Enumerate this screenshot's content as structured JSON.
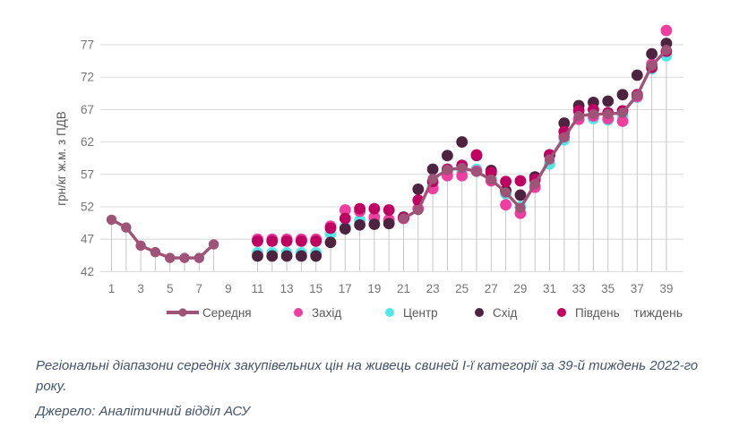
{
  "chart_data": {
    "type": "line",
    "title": "",
    "xlabel": "тиждень",
    "ylabel": "грн/кг ж.м. з ПДВ",
    "xticks": [
      1,
      3,
      5,
      7,
      9,
      11,
      13,
      15,
      17,
      19,
      21,
      23,
      25,
      27,
      29,
      31,
      33,
      35,
      37,
      39
    ],
    "yticks": [
      42,
      47,
      52,
      57,
      62,
      67,
      72,
      77
    ],
    "ylim": [
      42,
      80.5
    ],
    "xlim": [
      1,
      39
    ],
    "grid": true,
    "legend_position": "bottom",
    "weeks": [
      1,
      2,
      3,
      4,
      5,
      6,
      7,
      8,
      9,
      10,
      11,
      12,
      13,
      14,
      15,
      16,
      17,
      18,
      19,
      20,
      21,
      22,
      23,
      24,
      25,
      26,
      27,
      28,
      29,
      30,
      31,
      32,
      33,
      34,
      35,
      36,
      37,
      38,
      39
    ],
    "series": [
      {
        "key": "serednia",
        "name": "Середня",
        "type": "line",
        "color": "#9E5377",
        "values": [
          50.0,
          48.8,
          46.0,
          45.0,
          44.1,
          44.1,
          44.1,
          46.2,
          null,
          null,
          null,
          null,
          null,
          null,
          null,
          null,
          null,
          null,
          null,
          null,
          50.2,
          51.5,
          56.3,
          57.7,
          58.0,
          57.4,
          56.2,
          54.2,
          51.8,
          55.5,
          59.3,
          62.7,
          66.0,
          66.3,
          66.3,
          66.5,
          69.2,
          73.8,
          76.2
        ]
      },
      {
        "key": "zakhid",
        "name": "Захід",
        "type": "scatter",
        "color": "#F03DA0",
        "values": [
          null,
          null,
          null,
          null,
          null,
          null,
          null,
          null,
          null,
          null,
          47.0,
          47.0,
          47.0,
          47.0,
          47.0,
          49.0,
          51.5,
          51.3,
          50.4,
          50.0,
          50.2,
          51.7,
          54.8,
          56.8,
          56.8,
          57.5,
          56.0,
          52.3,
          51.0,
          55.0,
          60.0,
          62.8,
          65.5,
          66.0,
          65.6,
          65.2,
          69.0,
          74.0,
          79.2
        ]
      },
      {
        "key": "tsentr",
        "name": "Центр",
        "type": "scatter",
        "color": "#53E6E8",
        "values": [
          null,
          null,
          null,
          null,
          null,
          null,
          null,
          null,
          null,
          null,
          44.9,
          44.9,
          44.9,
          44.9,
          44.9,
          47.8,
          48.9,
          49.9,
          49.9,
          49.8,
          50.2,
          51.7,
          55.3,
          57.4,
          57.5,
          57.8,
          56.4,
          54.0,
          52.0,
          55.3,
          58.6,
          62.3,
          65.5,
          65.6,
          65.4,
          66.1,
          68.9,
          73.3,
          75.3
        ]
      },
      {
        "key": "skhid",
        "name": "Схід",
        "type": "scatter",
        "color": "#4E2340",
        "values": [
          null,
          null,
          null,
          null,
          null,
          null,
          null,
          null,
          null,
          null,
          44.4,
          44.4,
          44.4,
          44.4,
          44.4,
          46.5,
          48.6,
          49.2,
          49.3,
          49.4,
          50.4,
          54.7,
          57.8,
          59.9,
          62.0,
          59.9,
          57.6,
          54.5,
          53.8,
          56.6,
          60.0,
          64.9,
          67.6,
          68.1,
          68.3,
          69.3,
          72.3,
          75.6,
          77.2
        ]
      },
      {
        "key": "pivden",
        "name": "Південь",
        "type": "scatter",
        "color": "#BF0162",
        "values": [
          null,
          null,
          null,
          null,
          null,
          null,
          null,
          null,
          null,
          null,
          46.7,
          46.7,
          46.7,
          46.7,
          46.7,
          48.7,
          50.2,
          51.7,
          51.7,
          51.5,
          50.3,
          53.0,
          55.9,
          57.8,
          58.4,
          60.0,
          57.3,
          55.9,
          56.0,
          56.2,
          60.0,
          63.6,
          66.8,
          67.0,
          66.5,
          66.8,
          69.3,
          73.5,
          76.0
        ]
      }
    ],
    "draw_order": [
      "tsentr",
      "zakhid",
      "skhid",
      "pivden",
      "serednia"
    ],
    "grid_color": "#D8D8D8",
    "dropline_color": "#C6C6C6",
    "tick_color": "#757575",
    "axis_title_color": "#595959"
  },
  "caption": {
    "text": "Регіональні діапазони середніх закупівельних цін на живець свиней І-ї категорії за 39-й тиждень 2022-го року.",
    "source": "Джерело: Аналітичний відділ АСУ"
  }
}
